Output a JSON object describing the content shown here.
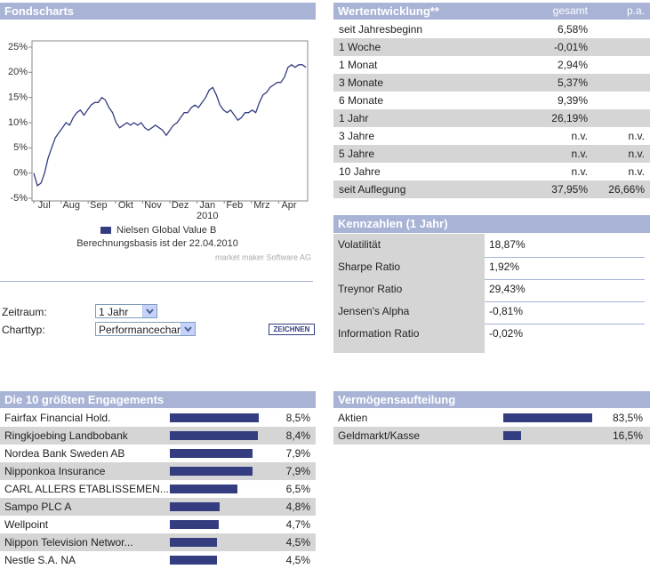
{
  "chart_data": {
    "type": "line",
    "title": "Fondscharts",
    "series": [
      {
        "name": "Nielsen Global Value B",
        "color": "#333d80",
        "values": [
          0,
          -2.5,
          -2,
          0,
          3,
          5,
          7,
          8,
          9,
          10,
          9.5,
          11,
          12,
          12.5,
          11.5,
          12.5,
          13.5,
          14,
          14,
          15,
          14.5,
          13,
          12,
          10,
          9,
          9.5,
          10,
          9.5,
          10,
          9.5,
          10,
          9,
          8.5,
          9,
          9.5,
          9,
          8.5,
          7.5,
          8.5,
          9.5,
          10,
          11,
          12,
          12,
          13,
          13.5,
          13,
          14,
          15,
          16.5,
          17,
          15.5,
          13.5,
          12.5,
          12,
          12.5,
          11.5,
          10.5,
          11,
          12,
          12,
          12.5,
          12,
          14,
          15.5,
          16,
          17,
          17.5,
          18,
          18,
          19,
          21,
          21.5,
          21,
          21.5,
          21.5,
          21
        ]
      }
    ],
    "ylim": [
      -5,
      25
    ],
    "yticks": [
      {
        "value": 25,
        "label": "25%"
      },
      {
        "value": 20,
        "label": "20%"
      },
      {
        "value": 15,
        "label": "15%"
      },
      {
        "value": 10,
        "label": "10%"
      },
      {
        "value": 5,
        "label": "5%"
      },
      {
        "value": 0,
        "label": "0%"
      },
      {
        "value": -5,
        "label": "-5%"
      }
    ],
    "x_labels": [
      "Jul",
      "Aug",
      "Sep",
      "Okt",
      "Nov",
      "Dez",
      "Jan",
      "Feb",
      "Mrz",
      "Apr"
    ],
    "x_sublabel": "2010",
    "footnote": "Berechnungsbasis ist der 22.04.2010",
    "source": "market maker Software AG"
  },
  "form": {
    "zeitraum_label": "Zeitraum:",
    "zeitraum_value": "1 Jahr",
    "charttyp_label": "Charttyp:",
    "charttyp_value": "Performancechart",
    "button": "ZEICHNEN"
  },
  "performance": {
    "title": "Wertentwicklung**",
    "columns": [
      "gesamt",
      "p.a."
    ],
    "rows": [
      {
        "label": "seit Jahresbeginn",
        "gesamt": "6,58%"
      },
      {
        "label": "1 Woche",
        "gesamt": "-0,01%"
      },
      {
        "label": "1 Monat",
        "gesamt": "2,94%"
      },
      {
        "label": "3 Monate",
        "gesamt": "5,37%"
      },
      {
        "label": "6 Monate",
        "gesamt": "9,39%"
      },
      {
        "label": "1 Jahr",
        "gesamt": "26,19%"
      },
      {
        "label": "3 Jahre",
        "gesamt": "n.v.",
        "pa": "n.v."
      },
      {
        "label": "5 Jahre",
        "gesamt": "n.v.",
        "pa": "n.v."
      },
      {
        "label": "10 Jahre",
        "gesamt": "n.v.",
        "pa": "n.v."
      },
      {
        "label": "seit Auflegung",
        "gesamt": "37,95%",
        "pa": "26,66%"
      }
    ]
  },
  "kennzahlen": {
    "title": "Kennzahlen (1 Jahr)",
    "rows": [
      [
        "Volatilität",
        "18,87%"
      ],
      [
        "Sharpe Ratio",
        "1,92%"
      ],
      [
        "Treynor Ratio",
        "29,43%"
      ],
      [
        "Jensen's Alpha",
        "-0,81%"
      ],
      [
        "Information Ratio",
        "-0,02%"
      ]
    ]
  },
  "holdings": {
    "title": "Die 10 größten Engagements",
    "names": [
      "Fairfax Financial Hold.",
      "Ringkjoebing Landbobank",
      "Nordea Bank Sweden AB",
      "Nipponkoa Insurance",
      "CARL ALLERS ETABLISSEMEN...",
      "Sampo PLC A",
      "Wellpoint",
      "Nippon Television Networ...",
      "Nestle S.A. NA"
    ],
    "values": [
      8.5,
      8.4,
      7.9,
      7.9,
      6.5,
      4.8,
      4.7,
      4.5,
      4.5
    ],
    "value_labels": [
      "8,5%",
      "8,4%",
      "7,9%",
      "7,9%",
      "6,5%",
      "4,8%",
      "4,7%",
      "4,5%",
      "4,5%"
    ]
  },
  "allocation": {
    "title": "Vermögensaufteilung",
    "names": [
      "Aktien",
      "Geldmarkt/Kasse"
    ],
    "values": [
      83.5,
      16.5
    ],
    "value_labels": [
      "83,5%",
      "16,5%"
    ]
  }
}
